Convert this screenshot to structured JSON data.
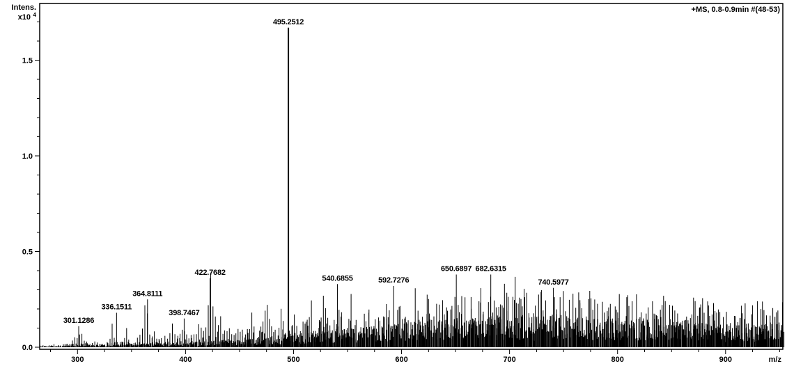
{
  "chart_data": {
    "type": "bar",
    "subtype": "mass-spectrum-stick-plot",
    "title": "",
    "scan_label": "+MS, 0.8-0.9min #(48-53)",
    "xlabel": "m/z",
    "ylabel": "Intens.",
    "y_unit_prefix": "x10",
    "y_unit_exponent": "4",
    "xlim": [
      265,
      953
    ],
    "ylim": [
      0,
      1.8
    ],
    "grid": false,
    "legend": "none",
    "x_axis": {
      "major_tick_values": [
        300,
        400,
        500,
        600,
        700,
        800,
        900
      ],
      "minor_tick_step": 25
    },
    "y_axis": {
      "major_tick_values": [
        0.0,
        0.5,
        1.0,
        1.5
      ],
      "major_tick_labels": [
        "0.0",
        "0.5",
        "1.0",
        "1.5"
      ],
      "minor_tick_step": 0.1
    },
    "labeled_peaks": [
      {
        "mz": 301.1286,
        "label": "301.1286",
        "intensity": 0.11
      },
      {
        "mz": 336.1511,
        "label": "336.1511",
        "intensity": 0.18
      },
      {
        "mz": 364.8111,
        "label": "364.8111",
        "intensity": 0.25
      },
      {
        "mz": 398.7467,
        "label": "398.7467",
        "intensity": 0.15
      },
      {
        "mz": 422.7682,
        "label": "422.7682",
        "intensity": 0.36
      },
      {
        "mz": 495.2512,
        "label": "495.2512",
        "intensity": 1.67
      },
      {
        "mz": 540.6855,
        "label": "540.6855",
        "intensity": 0.33
      },
      {
        "mz": 592.7276,
        "label": "592.7276",
        "intensity": 0.32
      },
      {
        "mz": 650.6897,
        "label": "650.6897",
        "intensity": 0.38
      },
      {
        "mz": 682.6315,
        "label": "682.6315",
        "intensity": 0.38
      },
      {
        "mz": 740.5977,
        "label": "740.5977",
        "intensity": 0.31
      }
    ],
    "cluster_envelope": [
      [
        265,
        0.012
      ],
      [
        278,
        0.015
      ],
      [
        290,
        0.02
      ],
      [
        298,
        0.06
      ],
      [
        301,
        0.12
      ],
      [
        306,
        0.05
      ],
      [
        314,
        0.05
      ],
      [
        322,
        0.06
      ],
      [
        330,
        0.09
      ],
      [
        336,
        0.17
      ],
      [
        341,
        0.13
      ],
      [
        348,
        0.07
      ],
      [
        357,
        0.14
      ],
      [
        362,
        0.22
      ],
      [
        365,
        0.26
      ],
      [
        371,
        0.12
      ],
      [
        378,
        0.1
      ],
      [
        386,
        0.13
      ],
      [
        392,
        0.16
      ],
      [
        399,
        0.15
      ],
      [
        406,
        0.11
      ],
      [
        414,
        0.13
      ],
      [
        420,
        0.28
      ],
      [
        423,
        0.36
      ],
      [
        428,
        0.14
      ],
      [
        436,
        0.16
      ],
      [
        444,
        0.22
      ],
      [
        451,
        0.17
      ],
      [
        458,
        0.24
      ],
      [
        466,
        0.2
      ],
      [
        473,
        0.28
      ],
      [
        479,
        0.35
      ],
      [
        484,
        0.32
      ],
      [
        490,
        0.2
      ],
      [
        495,
        0.42
      ],
      [
        501,
        0.26
      ],
      [
        508,
        0.28
      ],
      [
        516,
        0.24
      ],
      [
        523,
        0.26
      ],
      [
        531,
        0.24
      ],
      [
        538,
        0.31
      ],
      [
        543,
        0.28
      ],
      [
        550,
        0.24
      ],
      [
        558,
        0.3
      ],
      [
        565,
        0.31
      ],
      [
        572,
        0.24
      ],
      [
        580,
        0.26
      ],
      [
        588,
        0.29
      ],
      [
        593,
        0.31
      ],
      [
        600,
        0.24
      ],
      [
        608,
        0.28
      ],
      [
        616,
        0.33
      ],
      [
        624,
        0.36
      ],
      [
        632,
        0.28
      ],
      [
        640,
        0.28
      ],
      [
        648,
        0.38
      ],
      [
        653,
        0.34
      ],
      [
        660,
        0.28
      ],
      [
        668,
        0.3
      ],
      [
        676,
        0.33
      ],
      [
        681,
        0.38
      ],
      [
        688,
        0.3
      ],
      [
        695,
        0.3
      ],
      [
        703,
        0.34
      ],
      [
        710,
        0.4
      ],
      [
        716,
        0.32
      ],
      [
        724,
        0.27
      ],
      [
        732,
        0.3
      ],
      [
        739,
        0.32
      ],
      [
        746,
        0.28
      ],
      [
        754,
        0.26
      ],
      [
        762,
        0.29
      ],
      [
        770,
        0.31
      ],
      [
        778,
        0.26
      ],
      [
        786,
        0.31
      ],
      [
        794,
        0.28
      ],
      [
        802,
        0.24
      ],
      [
        810,
        0.26
      ],
      [
        818,
        0.23
      ],
      [
        826,
        0.27
      ],
      [
        834,
        0.25
      ],
      [
        842,
        0.22
      ],
      [
        850,
        0.26
      ],
      [
        858,
        0.21
      ],
      [
        866,
        0.2
      ],
      [
        874,
        0.22
      ],
      [
        882,
        0.19
      ],
      [
        890,
        0.22
      ],
      [
        898,
        0.21
      ],
      [
        906,
        0.17
      ],
      [
        914,
        0.2
      ],
      [
        922,
        0.16
      ],
      [
        930,
        0.18
      ],
      [
        938,
        0.16
      ],
      [
        946,
        0.17
      ],
      [
        953,
        0.15
      ]
    ],
    "noise_base": [
      [
        265,
        0.004
      ],
      [
        290,
        0.006
      ],
      [
        310,
        0.008
      ],
      [
        330,
        0.01
      ],
      [
        350,
        0.012
      ],
      [
        375,
        0.015
      ],
      [
        400,
        0.018
      ],
      [
        425,
        0.022
      ],
      [
        450,
        0.028
      ],
      [
        475,
        0.035
      ],
      [
        500,
        0.045
      ],
      [
        525,
        0.055
      ],
      [
        550,
        0.065
      ],
      [
        575,
        0.075
      ],
      [
        600,
        0.085
      ],
      [
        625,
        0.092
      ],
      [
        650,
        0.098
      ],
      [
        675,
        0.104
      ],
      [
        700,
        0.108
      ],
      [
        725,
        0.11
      ],
      [
        750,
        0.11
      ],
      [
        775,
        0.106
      ],
      [
        800,
        0.102
      ],
      [
        825,
        0.1
      ],
      [
        850,
        0.098
      ],
      [
        875,
        0.094
      ],
      [
        900,
        0.092
      ],
      [
        925,
        0.09
      ],
      [
        953,
        0.088
      ]
    ],
    "seed": 1337
  }
}
